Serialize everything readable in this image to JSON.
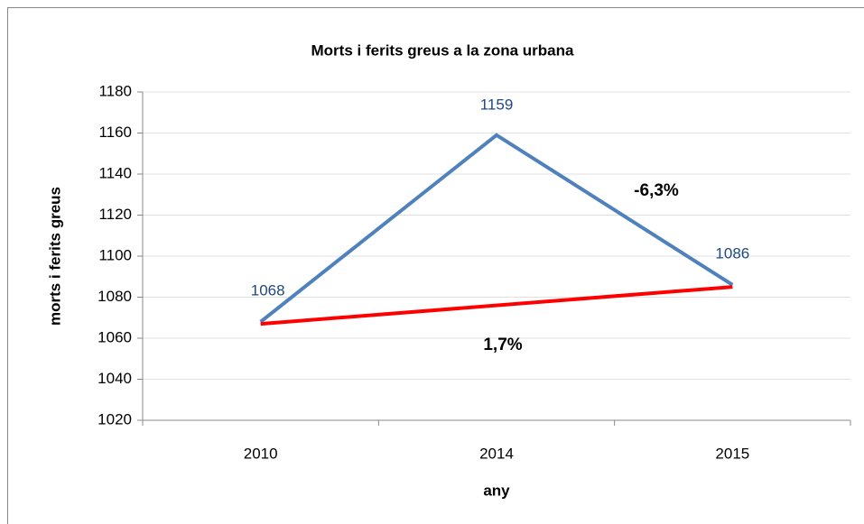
{
  "chart_data": {
    "type": "line",
    "title": "Morts i ferits greus a la zona urbana",
    "x_label": "any",
    "y_label": "morts i ferits greus",
    "categories": [
      "2010",
      "2014",
      "2015"
    ],
    "series": [
      {
        "name": "Morts i ferits greus",
        "color": "#4f81bd",
        "values": [
          1068,
          1159,
          1086
        ]
      }
    ],
    "ylim": [
      1020,
      1180
    ],
    "yticks": [
      1020,
      1040,
      1060,
      1080,
      1100,
      1120,
      1140,
      1160,
      1180
    ],
    "grid": true,
    "trend_line": {
      "color": "#ff0000",
      "values": [
        1067,
        1085
      ]
    },
    "annotations": [
      "-6,3%",
      "1,7%"
    ]
  }
}
